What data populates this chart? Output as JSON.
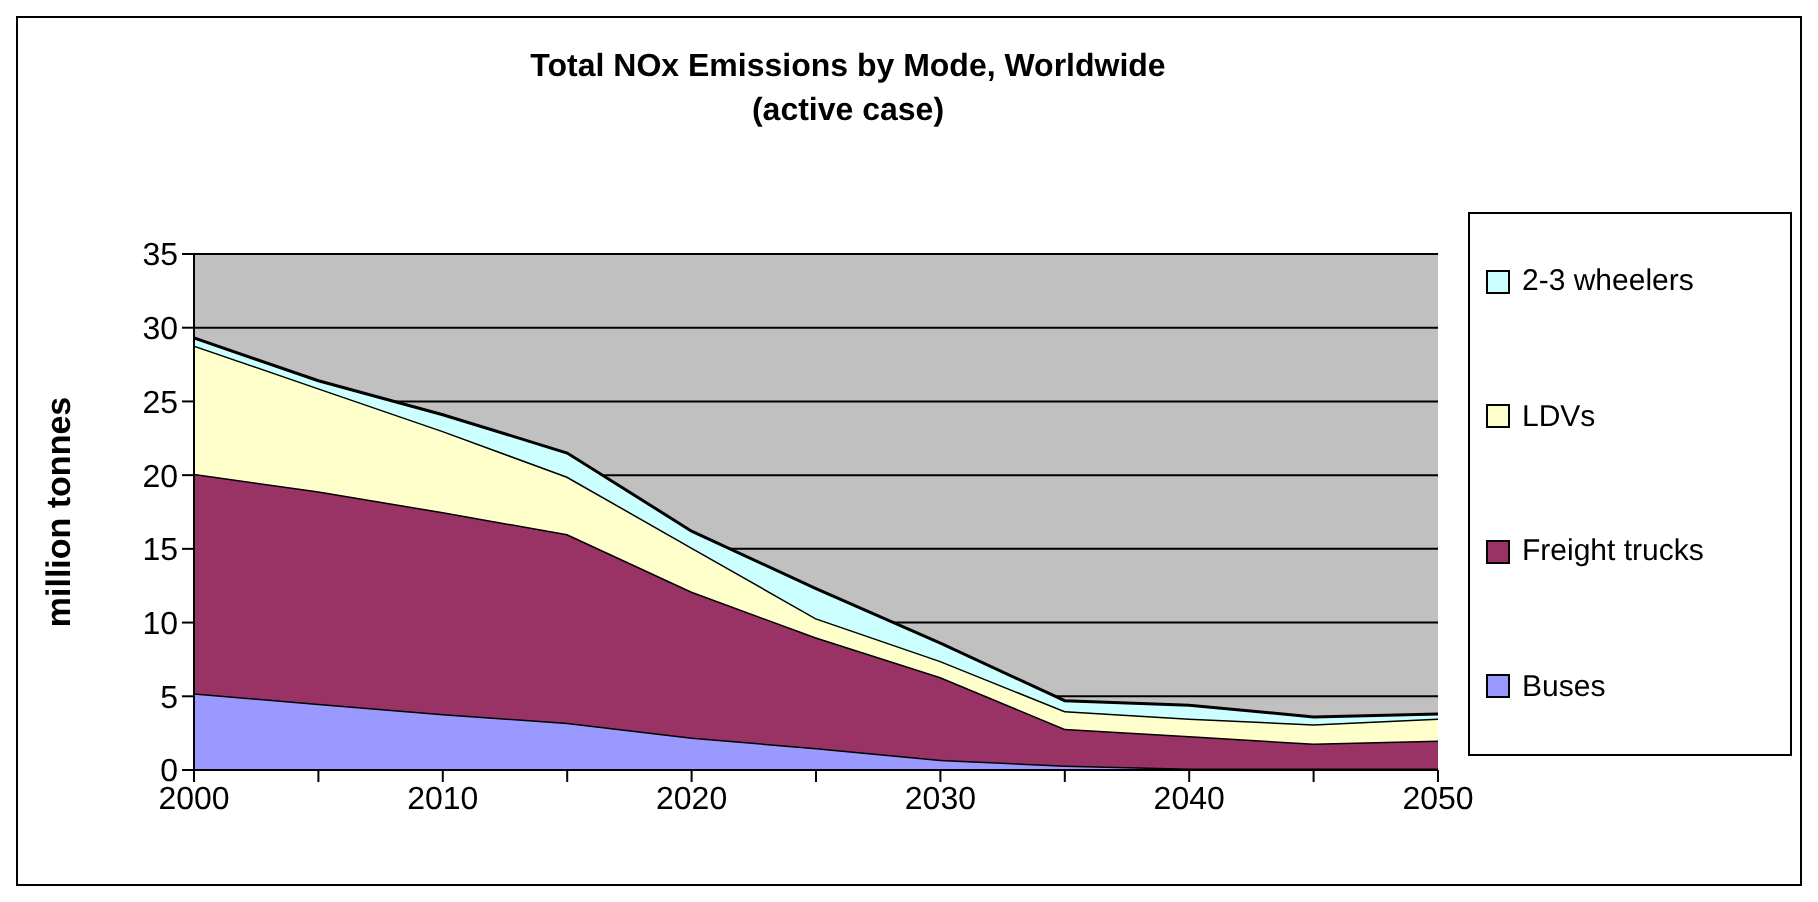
{
  "chart_data": {
    "type": "area",
    "stacked": true,
    "title": "Total NOx Emissions by Mode, Worldwide\n(active case)",
    "ylabel": "million tonnes",
    "x": [
      2000,
      2005,
      2010,
      2015,
      2020,
      2025,
      2030,
      2035,
      2040,
      2045,
      2050
    ],
    "series": [
      {
        "name": "Buses",
        "color": "#9999ff",
        "values": [
          5.2,
          4.5,
          3.8,
          3.2,
          2.2,
          1.5,
          0.7,
          0.3,
          0.1,
          0.1,
          0.1
        ]
      },
      {
        "name": "Freight trucks",
        "color": "#993366",
        "values": [
          14.9,
          14.4,
          13.7,
          12.8,
          9.9,
          7.5,
          5.6,
          2.5,
          2.2,
          1.7,
          1.9
        ]
      },
      {
        "name": "LDVs",
        "color": "#ffffcc",
        "values": [
          8.7,
          7.0,
          5.5,
          3.9,
          3.0,
          1.3,
          1.1,
          1.2,
          1.2,
          1.3,
          1.5
        ]
      },
      {
        "name": "2-3 wheelers",
        "color": "#ccffff",
        "values": [
          0.5,
          0.5,
          1.1,
          1.6,
          1.1,
          2.0,
          1.2,
          0.7,
          0.9,
          0.5,
          0.3
        ]
      }
    ],
    "xlim": [
      2000,
      2050
    ],
    "xticks": [
      2000,
      {
        "value": 2005,
        "label": null
      },
      2010,
      {
        "value": 2015,
        "label": null
      },
      2020,
      {
        "value": 2025,
        "label": null
      },
      2030,
      {
        "value": 2035,
        "label": null
      },
      2040,
      {
        "value": 2045,
        "label": null
      },
      2050
    ],
    "ylim": [
      0,
      35
    ],
    "yticks": [
      0,
      5,
      10,
      15,
      20,
      25,
      30,
      35
    ],
    "grid": "y",
    "legend": "right"
  }
}
